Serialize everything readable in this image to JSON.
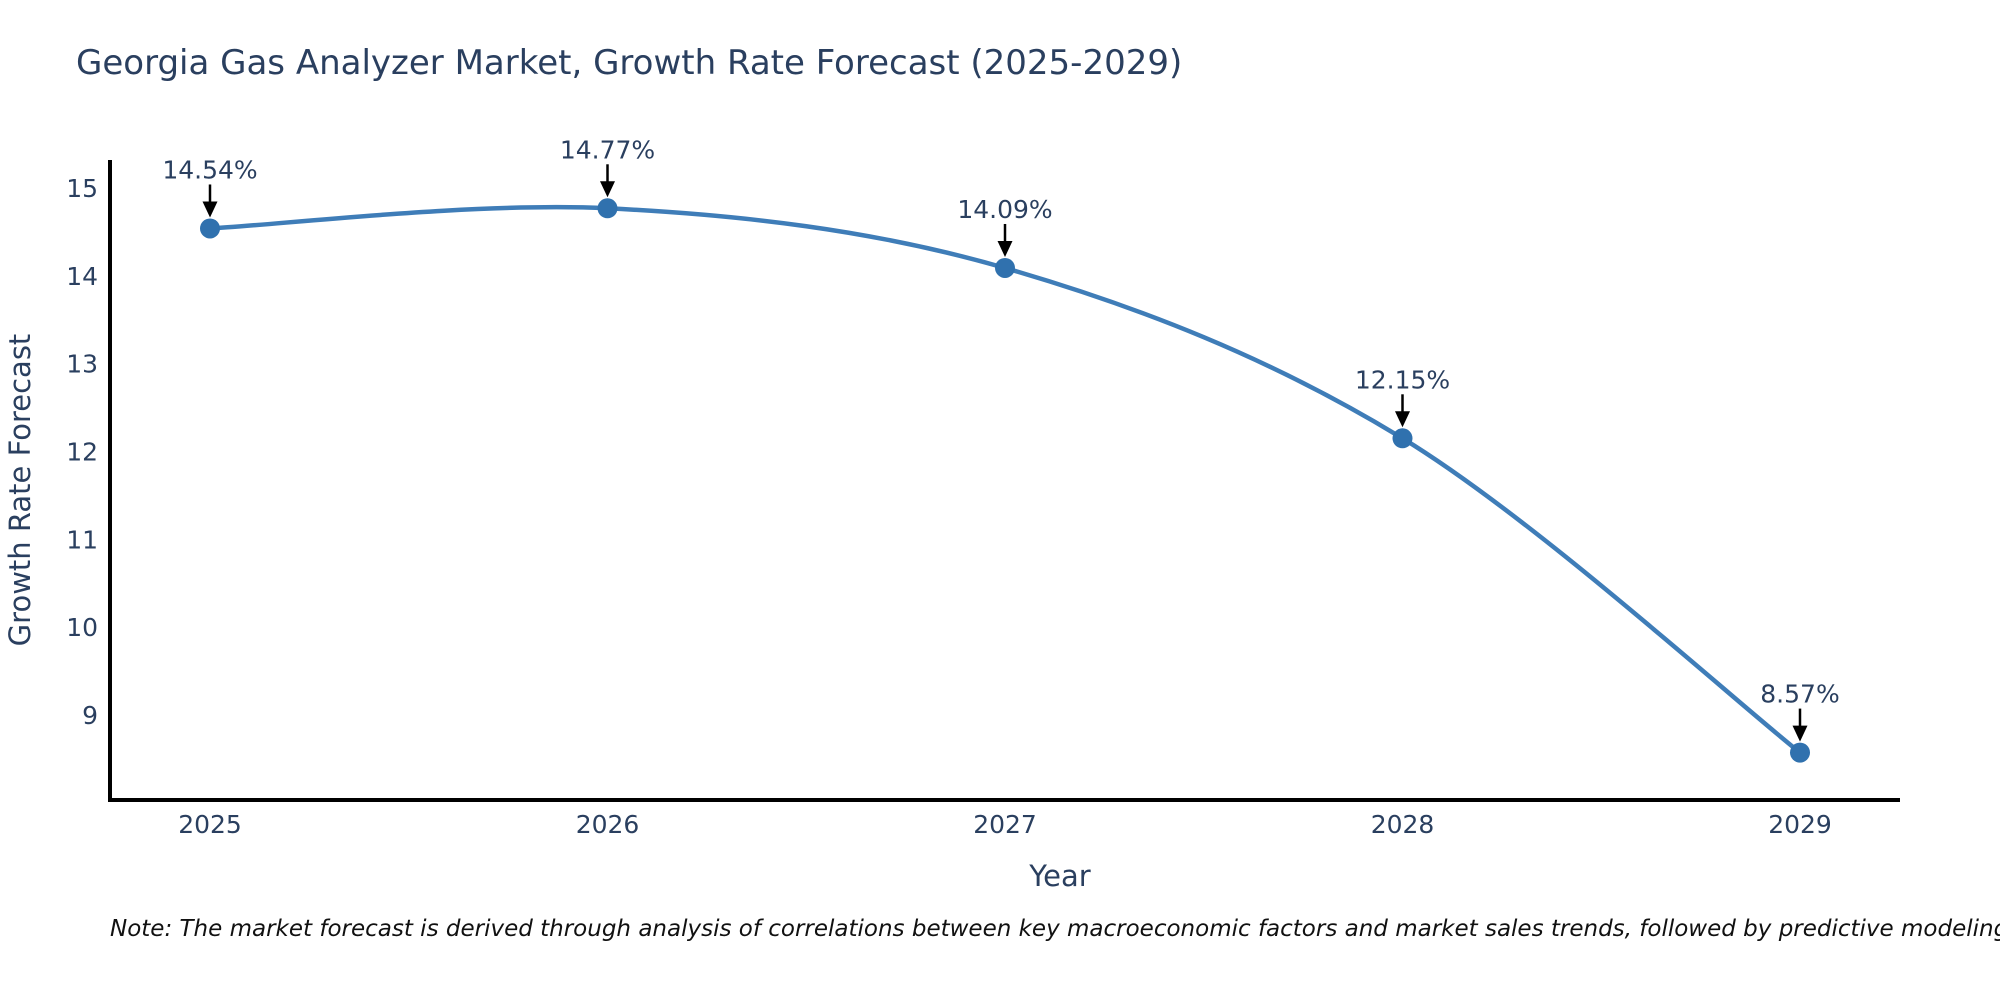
{
  "title": "Georgia Gas Analyzer Market, Growth Rate Forecast (2025-2029)",
  "note": "Note: The market forecast is derived through analysis of correlations between key macroeconomic factors and market sales trends, followed by predictive modeling to project future sales.",
  "chart_data": {
    "type": "line",
    "line_shape": "spline",
    "x": [
      "2025",
      "2026",
      "2027",
      "2028",
      "2029"
    ],
    "series": [
      {
        "name": "Growth Rate Forecast",
        "values": [
          14.54,
          14.77,
          14.09,
          12.15,
          8.57
        ]
      }
    ],
    "point_labels": [
      "14.54%",
      "14.77%",
      "14.09%",
      "12.15%",
      "8.57%"
    ],
    "title": "Georgia Gas Analyzer Market, Growth Rate Forecast (2025-2029)",
    "xlabel": "Year",
    "ylabel": "Growth Rate Forecast",
    "yticks": [
      9,
      10,
      11,
      12,
      13,
      14,
      15
    ],
    "ylim": [
      8.03,
      15.32
    ],
    "grid": false,
    "legend_position": "none",
    "annotation_style": "black-down-arrow",
    "colors": {
      "line": "#3f7db8",
      "marker": "#3071ae",
      "axis": "#000000",
      "tick_text": "#2a3f5f",
      "annotation_text": "#2a3f5f",
      "arrow": "#000000",
      "title_text": "#2a3f5f",
      "note_text": "#111111",
      "background": "#ffffff"
    }
  }
}
